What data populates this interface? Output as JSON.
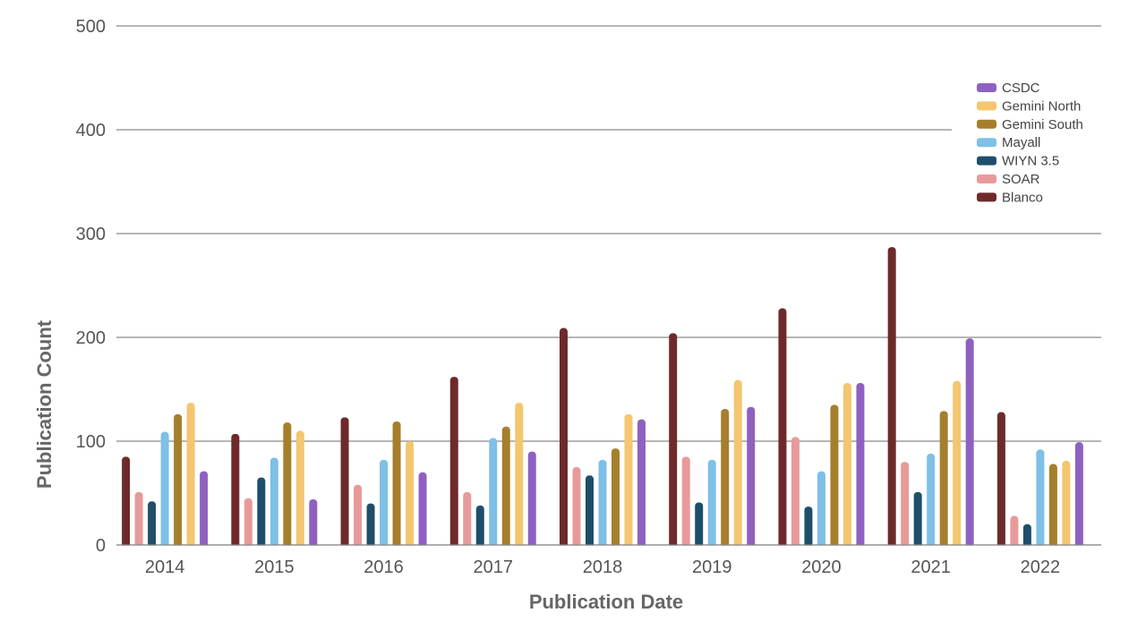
{
  "chart_data": {
    "type": "bar",
    "xlabel": "Publication Date",
    "ylabel": "Publication Count",
    "ylim": [
      0,
      500
    ],
    "yticks": [
      0,
      100,
      200,
      300,
      400,
      500
    ],
    "grid": true,
    "legend_position": "top-right",
    "categories": [
      "2014",
      "2015",
      "2016",
      "2017",
      "2018",
      "2019",
      "2020",
      "2021",
      "2022"
    ],
    "series": [
      {
        "name": "Blanco",
        "color": "#6e2a2a",
        "values": [
          85,
          107,
          123,
          162,
          209,
          204,
          228,
          287,
          128
        ]
      },
      {
        "name": "SOAR",
        "color": "#e89a9a",
        "values": [
          51,
          45,
          58,
          51,
          75,
          85,
          104,
          80,
          28
        ]
      },
      {
        "name": "WIYN 3.5",
        "color": "#1f4e6b",
        "values": [
          42,
          65,
          40,
          38,
          67,
          41,
          37,
          51,
          20
        ]
      },
      {
        "name": "Mayall",
        "color": "#7ec0e6",
        "values": [
          109,
          84,
          82,
          103,
          82,
          82,
          71,
          88,
          92
        ]
      },
      {
        "name": "Gemini South",
        "color": "#a67f2c",
        "values": [
          126,
          118,
          119,
          114,
          93,
          131,
          135,
          129,
          78
        ]
      },
      {
        "name": "Gemini North",
        "color": "#f3c66f",
        "values": [
          137,
          110,
          100,
          137,
          126,
          159,
          156,
          158,
          81
        ]
      },
      {
        "name": "CSDC",
        "color": "#8e61c1",
        "values": [
          71,
          44,
          70,
          90,
          121,
          133,
          156,
          199,
          99
        ]
      }
    ],
    "legend_order": [
      "CSDC",
      "Gemini North",
      "Gemini South",
      "Mayall",
      "WIYN 3.5",
      "SOAR",
      "Blanco"
    ]
  }
}
